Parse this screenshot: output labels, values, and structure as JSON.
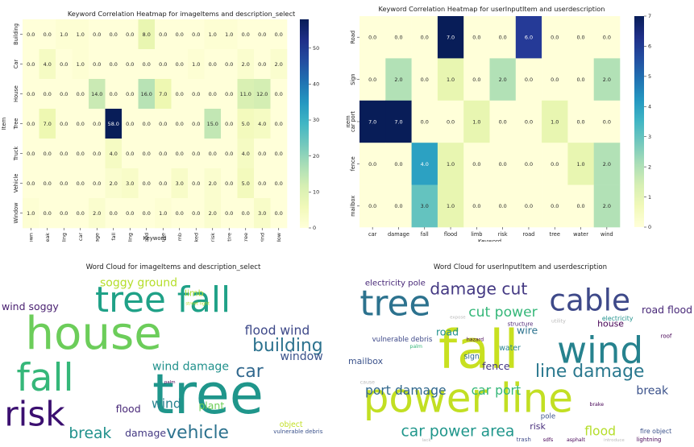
{
  "chart_data": [
    {
      "type": "heatmap",
      "title": "Keyword Correlation Heatmap for imageItems and description_select",
      "xlabel": "Keyword",
      "ylabel": "Item",
      "x": [
        "blown",
        "break",
        "building",
        "car",
        "damage",
        "fall",
        "floading",
        "flood",
        "house",
        "limb",
        "parked",
        "risk",
        "tire",
        "tree",
        "wind",
        "window"
      ],
      "y": [
        "Building",
        "Car",
        "House",
        "Tree",
        "Truck",
        "Vehicle",
        "Window"
      ],
      "values": [
        [
          0.0,
          0.0,
          1.0,
          1.0,
          0.0,
          0.0,
          0.0,
          8.0,
          0.0,
          0.0,
          0.0,
          1.0,
          1.0,
          0.0,
          0.0,
          0.0
        ],
        [
          0.0,
          4.0,
          0.0,
          1.0,
          0.0,
          0.0,
          0.0,
          0.0,
          0.0,
          0.0,
          1.0,
          0.0,
          0.0,
          2.0,
          0.0,
          2.0
        ],
        [
          0.0,
          0.0,
          0.0,
          0.0,
          14.0,
          0.0,
          0.0,
          16.0,
          7.0,
          0.0,
          0.0,
          0.0,
          0.0,
          11.0,
          12.0,
          0.0
        ],
        [
          0.0,
          7.0,
          0.0,
          0.0,
          0.0,
          58.0,
          0.0,
          0.0,
          0.0,
          0.0,
          0.0,
          15.0,
          0.0,
          5.0,
          4.0,
          0.0
        ],
        [
          0.0,
          0.0,
          0.0,
          0.0,
          0.0,
          4.0,
          0.0,
          0.0,
          0.0,
          0.0,
          0.0,
          0.0,
          0.0,
          4.0,
          0.0,
          0.0
        ],
        [
          0.0,
          0.0,
          0.0,
          0.0,
          0.0,
          2.0,
          3.0,
          0.0,
          0.0,
          3.0,
          0.0,
          2.0,
          0.0,
          5.0,
          0.0,
          0.0
        ],
        [
          1.0,
          0.0,
          0.0,
          0.0,
          2.0,
          0.0,
          0.0,
          0.0,
          1.0,
          0.0,
          0.0,
          2.0,
          0.0,
          0.0,
          3.0,
          0.0
        ]
      ],
      "colorbar": {
        "min": 0,
        "max": 58,
        "ticks": [
          "0",
          "10",
          "20",
          "30",
          "40",
          "50"
        ],
        "tick_values": [
          0,
          10,
          20,
          30,
          40,
          50
        ]
      },
      "colormap": "YlGnBu"
    },
    {
      "type": "heatmap",
      "title": "Keyword Correlation Heatmap for userInputItem and userdescription",
      "xlabel": "Keyword",
      "ylabel": "Item",
      "x": [
        "car",
        "damage",
        "fall",
        "flood",
        "limb",
        "risk",
        "road",
        "tree",
        "water",
        "wind"
      ],
      "y": [
        "Road",
        "Sign",
        "car port",
        "fence",
        "mailbox"
      ],
      "values": [
        [
          0.0,
          0.0,
          0.0,
          7.0,
          0.0,
          0.0,
          6.0,
          0.0,
          0.0,
          0.0
        ],
        [
          0.0,
          2.0,
          0.0,
          1.0,
          0.0,
          2.0,
          0.0,
          0.0,
          0.0,
          2.0
        ],
        [
          7.0,
          7.0,
          0.0,
          0.0,
          1.0,
          0.0,
          0.0,
          1.0,
          0.0,
          0.0
        ],
        [
          0.0,
          0.0,
          4.0,
          1.0,
          0.0,
          0.0,
          0.0,
          0.0,
          1.0,
          2.0
        ],
        [
          0.0,
          0.0,
          3.0,
          1.0,
          0.0,
          0.0,
          0.0,
          0.0,
          0.0,
          2.0
        ]
      ],
      "colorbar": {
        "min": 0,
        "max": 7,
        "ticks": [
          "0",
          "1",
          "2",
          "3",
          "4",
          "5",
          "6",
          "7"
        ],
        "tick_values": [
          0,
          1,
          2,
          3,
          4,
          5,
          6,
          7
        ]
      },
      "colormap": "YlGnBu"
    },
    {
      "type": "wordcloud",
      "title": "Word Cloud for imageItems and description_select",
      "words": [
        {
          "text": "house",
          "color": "#6ccd5a",
          "size": 72,
          "x": 0.27,
          "y": 0.37
        },
        {
          "text": "tree",
          "color": "#1f968b",
          "size": 88,
          "x": 0.6,
          "y": 0.73
        },
        {
          "text": "tree fall",
          "color": "#1fa187",
          "size": 56,
          "x": 0.47,
          "y": 0.17
        },
        {
          "text": "fall",
          "color": "#35b779",
          "size": 60,
          "x": 0.13,
          "y": 0.63
        },
        {
          "text": "risk",
          "color": "#3b0f70",
          "size": 54,
          "x": 0.1,
          "y": 0.84
        },
        {
          "text": "building",
          "color": "#2c728e",
          "size": 28,
          "x": 0.83,
          "y": 0.43
        },
        {
          "text": "vehicle",
          "color": "#2c728e",
          "size": 28,
          "x": 0.57,
          "y": 0.95
        },
        {
          "text": "car",
          "color": "#31688e",
          "size": 28,
          "x": 0.72,
          "y": 0.58
        },
        {
          "text": "break",
          "color": "#21918c",
          "size": 24,
          "x": 0.26,
          "y": 0.94
        },
        {
          "text": "flood wind",
          "color": "#3e4989",
          "size": 20,
          "x": 0.8,
          "y": 0.34
        },
        {
          "text": "soggy ground",
          "color": "#b5de2b",
          "size": 18,
          "x": 0.4,
          "y": 0.06
        },
        {
          "text": "wind damage",
          "color": "#21918c",
          "size": 18,
          "x": 0.55,
          "y": 0.55
        },
        {
          "text": "window",
          "color": "#3b528b",
          "size": 18,
          "x": 0.87,
          "y": 0.49
        },
        {
          "text": "wind soggy",
          "color": "#481f70",
          "size": 16,
          "x": 0.03,
          "y": 0.2
        },
        {
          "text": "wind",
          "color": "#26828e",
          "size": 20,
          "x": 0.48,
          "y": 0.77
        },
        {
          "text": "plant",
          "color": "#6ece58",
          "size": 16,
          "x": 0.61,
          "y": 0.78
        },
        {
          "text": "flood",
          "color": "#482878",
          "size": 16,
          "x": 0.37,
          "y": 0.8
        },
        {
          "text": "damage",
          "color": "#443983",
          "size": 16,
          "x": 0.42,
          "y": 0.94
        },
        {
          "text": "limb",
          "color": "#addc30",
          "size": 14,
          "x": 0.56,
          "y": 0.12
        },
        {
          "text": "object",
          "color": "#c2df23",
          "size": 12,
          "x": 0.84,
          "y": 0.89
        },
        {
          "text": "vulnerable debris",
          "color": "#3b528b",
          "size": 9,
          "x": 0.86,
          "y": 0.93
        },
        {
          "text": "street light",
          "color": "#b5de2b",
          "size": 7,
          "x": 0.57,
          "y": 0.18
        },
        {
          "text": "palm",
          "color": "#440154",
          "size": 7,
          "x": 0.49,
          "y": 0.64
        }
      ]
    },
    {
      "type": "wordcloud",
      "title": "Word Cloud for userInputItem and userdescription",
      "words": [
        {
          "text": "fall",
          "color": "#c8e020",
          "size": 84,
          "x": 0.38,
          "y": 0.47
        },
        {
          "text": "power line",
          "color": "#c2df23",
          "size": 64,
          "x": 0.35,
          "y": 0.75
        },
        {
          "text": "wind",
          "color": "#26828e",
          "size": 58,
          "x": 0.73,
          "y": 0.47
        },
        {
          "text": "tree",
          "color": "#2c728e",
          "size": 56,
          "x": 0.14,
          "y": 0.19
        },
        {
          "text": "cable",
          "color": "#3e4989",
          "size": 48,
          "x": 0.7,
          "y": 0.17
        },
        {
          "text": "damage cut",
          "color": "#443983",
          "size": 26,
          "x": 0.38,
          "y": 0.1
        },
        {
          "text": "line damage",
          "color": "#2a788e",
          "size": 28,
          "x": 0.7,
          "y": 0.58
        },
        {
          "text": "car power area",
          "color": "#1f968b",
          "size": 24,
          "x": 0.32,
          "y": 0.93
        },
        {
          "text": "cut power",
          "color": "#35b779",
          "size": 22,
          "x": 0.45,
          "y": 0.23
        },
        {
          "text": "port damage",
          "color": "#31688e",
          "size": 20,
          "x": 0.17,
          "y": 0.69
        },
        {
          "text": "car port",
          "color": "#35b779",
          "size": 20,
          "x": 0.43,
          "y": 0.69
        },
        {
          "text": "flood",
          "color": "#b5de2b",
          "size": 20,
          "x": 0.73,
          "y": 0.93
        },
        {
          "text": "road flood",
          "color": "#482878",
          "size": 16,
          "x": 0.94,
          "y": 0.22
        },
        {
          "text": "break",
          "color": "#3b528b",
          "size": 18,
          "x": 0.88,
          "y": 0.69
        },
        {
          "text": "house",
          "color": "#440154",
          "size": 14,
          "x": 0.76,
          "y": 0.3
        },
        {
          "text": "road",
          "color": "#21918c",
          "size": 16,
          "x": 0.29,
          "y": 0.35
        },
        {
          "text": "wire",
          "color": "#2c728e",
          "size": 16,
          "x": 0.52,
          "y": 0.34
        },
        {
          "text": "electricity pole",
          "color": "#482878",
          "size": 13,
          "x": 0.14,
          "y": 0.06
        },
        {
          "text": "vulnerable debris",
          "color": "#3e4989",
          "size": 11,
          "x": 0.16,
          "y": 0.39
        },
        {
          "text": "mailbox",
          "color": "#3b528b",
          "size": 14,
          "x": 0.04,
          "y": 0.52
        },
        {
          "text": "fence",
          "color": "#453781",
          "size": 16,
          "x": 0.43,
          "y": 0.55
        },
        {
          "text": "sign",
          "color": "#31688e",
          "size": 12,
          "x": 0.36,
          "y": 0.49
        },
        {
          "text": "water",
          "color": "#26828e",
          "size": 12,
          "x": 0.47,
          "y": 0.44
        },
        {
          "text": "risk",
          "color": "#472d7b",
          "size": 14,
          "x": 0.55,
          "y": 0.9
        },
        {
          "text": "pole",
          "color": "#3b528b",
          "size": 11,
          "x": 0.58,
          "y": 0.84
        },
        {
          "text": "electricity",
          "color": "#21918c",
          "size": 10,
          "x": 0.78,
          "y": 0.27
        },
        {
          "text": "roof",
          "color": "#440154",
          "size": 9,
          "x": 0.92,
          "y": 0.37
        },
        {
          "text": "fire object",
          "color": "#3b528b",
          "size": 10,
          "x": 0.89,
          "y": 0.93
        },
        {
          "text": "lightning",
          "color": "#440154",
          "size": 9,
          "x": 0.87,
          "y": 0.98
        },
        {
          "text": "hazard",
          "color": "#440154",
          "size": 8,
          "x": 0.37,
          "y": 0.39
        },
        {
          "text": "structure",
          "color": "#481f70",
          "size": 9,
          "x": 0.5,
          "y": 0.3
        },
        {
          "text": "trash",
          "color": "#3e4989",
          "size": 9,
          "x": 0.51,
          "y": 0.98
        },
        {
          "text": "asphalt",
          "color": "#440154",
          "size": 8,
          "x": 0.66,
          "y": 0.98
        },
        {
          "text": "brake",
          "color": "#440154",
          "size": 8,
          "x": 0.72,
          "y": 0.77
        },
        {
          "text": "palm",
          "color": "#35b779",
          "size": 8,
          "x": 0.2,
          "y": 0.43
        },
        {
          "text": "sdfs",
          "color": "#440154",
          "size": 8,
          "x": 0.58,
          "y": 0.98
        },
        {
          "text": "utility",
          "color": "#bbbbbb",
          "size": 8,
          "x": 0.61,
          "y": 0.28
        },
        {
          "text": "cause",
          "color": "#bbbbbb",
          "size": 8,
          "x": 0.06,
          "y": 0.64
        },
        {
          "text": "lack",
          "color": "#bbbbbb",
          "size": 7,
          "x": 0.23,
          "y": 0.99
        },
        {
          "text": "expose",
          "color": "#bbbbbb",
          "size": 7,
          "x": 0.32,
          "y": 0.26
        },
        {
          "text": "introduce",
          "color": "#bbbbbb",
          "size": 7,
          "x": 0.77,
          "y": 0.98
        }
      ]
    }
  ]
}
